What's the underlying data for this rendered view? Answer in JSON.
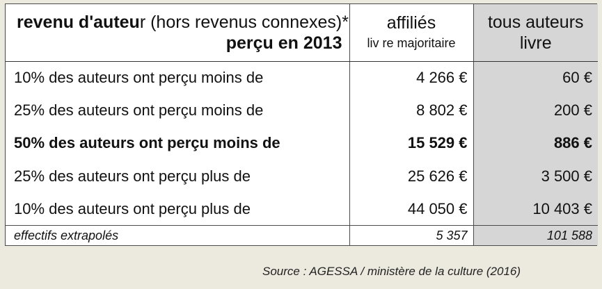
{
  "header": {
    "col1_line1_bold": "revenu d'auteu",
    "col1_line1_bold_r": "r",
    "col1_line1_normal": " (hors revenus connexes)*",
    "col1_line2": "perçu en 2013",
    "col2_line1": "affiliés",
    "col2_line2": "liv re majoritaire",
    "col3_line1": "tous auteurs",
    "col3_line2": "livre"
  },
  "rows": [
    {
      "label": "10%  des auteurs ont perçu moins de",
      "affilies": "4 266 €",
      "tous": "60 €"
    },
    {
      "label": "25%  des auteurs ont perçu moins de",
      "affilies": "8 802 €",
      "tous": "200 €"
    },
    {
      "label": "50% des auteurs ont perçu moins de",
      "affilies": "15  529 €",
      "tous": "886 €"
    },
    {
      "label": "25%  des auteurs ont perçu plus de",
      "affilies": "25 626 €",
      "tous": "3 500 €"
    },
    {
      "label": "10%  des auteurs ont perçu plus de",
      "affilies": "44 050 €",
      "tous": "10 403 €"
    }
  ],
  "footer": {
    "label": "effectifs extrapolés",
    "affilies": "5 357",
    "tous": "101 588"
  },
  "source": "Source : AGESSA / ministère de la culture (2016)",
  "colors": {
    "background": "#ece9df",
    "shaded_column": "#d6d6d6"
  }
}
